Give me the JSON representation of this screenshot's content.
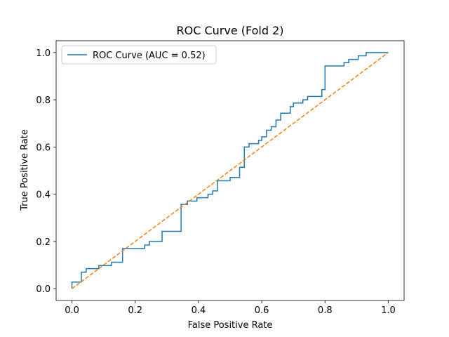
{
  "chart_data": {
    "type": "line",
    "title": "ROC Curve (Fold 2)",
    "xlabel": "False Positive Rate",
    "ylabel": "True Positive Rate",
    "xlim": [
      -0.05,
      1.05
    ],
    "ylim": [
      -0.05,
      1.05
    ],
    "xticks": [
      "0.0",
      "0.2",
      "0.4",
      "0.6",
      "0.8",
      "1.0"
    ],
    "yticks": [
      "0.0",
      "0.2",
      "0.4",
      "0.6",
      "0.8",
      "1.0"
    ],
    "grid": false,
    "legend_position": "top-left",
    "series": [
      {
        "name": "ROC Curve (AUC = 0.52)",
        "color": "#1f77b4",
        "style": "solid",
        "x": [
          0.0,
          0.0,
          0.03,
          0.03,
          0.045,
          0.045,
          0.085,
          0.085,
          0.125,
          0.125,
          0.16,
          0.16,
          0.23,
          0.23,
          0.245,
          0.245,
          0.285,
          0.285,
          0.345,
          0.345,
          0.365,
          0.365,
          0.395,
          0.395,
          0.43,
          0.43,
          0.445,
          0.445,
          0.46,
          0.46,
          0.5,
          0.5,
          0.53,
          0.53,
          0.545,
          0.545,
          0.56,
          0.56,
          0.59,
          0.59,
          0.6,
          0.6,
          0.615,
          0.615,
          0.63,
          0.63,
          0.645,
          0.645,
          0.66,
          0.66,
          0.69,
          0.69,
          0.7,
          0.7,
          0.73,
          0.73,
          0.745,
          0.745,
          0.79,
          0.79,
          0.8,
          0.8,
          0.86,
          0.86,
          0.875,
          0.875,
          0.905,
          0.905,
          0.93,
          0.93,
          1.0
        ],
        "y": [
          0.0,
          0.028,
          0.028,
          0.07,
          0.07,
          0.085,
          0.085,
          0.098,
          0.098,
          0.112,
          0.112,
          0.17,
          0.17,
          0.185,
          0.185,
          0.2,
          0.2,
          0.243,
          0.243,
          0.357,
          0.357,
          0.371,
          0.371,
          0.385,
          0.385,
          0.4,
          0.4,
          0.414,
          0.414,
          0.457,
          0.457,
          0.471,
          0.471,
          0.514,
          0.514,
          0.6,
          0.6,
          0.614,
          0.614,
          0.628,
          0.628,
          0.643,
          0.643,
          0.671,
          0.671,
          0.686,
          0.686,
          0.714,
          0.714,
          0.743,
          0.743,
          0.771,
          0.771,
          0.786,
          0.786,
          0.8,
          0.8,
          0.814,
          0.814,
          0.843,
          0.843,
          0.943,
          0.943,
          0.957,
          0.957,
          0.971,
          0.971,
          0.986,
          0.986,
          1.0,
          1.0
        ]
      },
      {
        "name": "",
        "color": "#ff7f0e",
        "style": "dashed",
        "x": [
          0.0,
          1.0
        ],
        "y": [
          0.0,
          1.0
        ]
      }
    ]
  }
}
